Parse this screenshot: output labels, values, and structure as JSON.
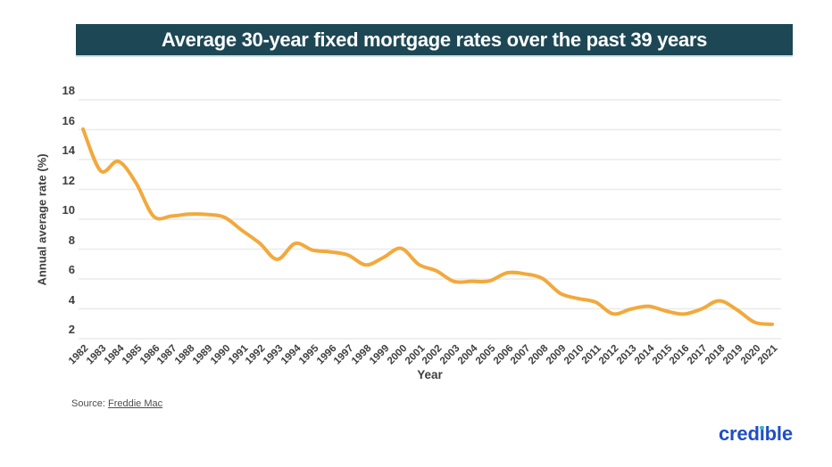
{
  "header": {
    "title": "Average 30-year fixed mortgage rates over the past 39 years",
    "background": "#1d4754"
  },
  "chart_data": {
    "type": "line",
    "title": "Average 30-year fixed mortgage rates over the past 39 years",
    "xlabel": "Year",
    "ylabel": "Annual average rate (%)",
    "x": [
      1982,
      1983,
      1984,
      1985,
      1986,
      1987,
      1988,
      1989,
      1990,
      1991,
      1992,
      1993,
      1994,
      1995,
      1996,
      1997,
      1998,
      1999,
      2000,
      2001,
      2002,
      2003,
      2004,
      2005,
      2006,
      2007,
      2008,
      2009,
      2010,
      2011,
      2012,
      2013,
      2014,
      2015,
      2016,
      2017,
      2018,
      2019,
      2020,
      2021
    ],
    "series": [
      {
        "name": "Annual average 30-year fixed mortgage rate (%)",
        "values": [
          16.04,
          13.24,
          13.88,
          12.43,
          10.19,
          10.21,
          10.34,
          10.32,
          10.13,
          9.25,
          8.39,
          7.31,
          8.38,
          7.93,
          7.81,
          7.6,
          6.94,
          7.44,
          8.05,
          6.97,
          6.54,
          5.83,
          5.84,
          5.87,
          6.41,
          6.34,
          6.03,
          5.04,
          4.69,
          4.45,
          3.66,
          3.98,
          4.17,
          3.85,
          3.65,
          3.99,
          4.54,
          3.94,
          3.1,
          2.96
        ]
      }
    ],
    "ylim": [
      2,
      18
    ],
    "y_ticks": [
      18,
      16,
      14,
      12,
      10,
      8,
      6,
      4,
      2
    ],
    "grid": "horizontal",
    "legend": "none",
    "smooth": true,
    "line_color": "#f2a93c",
    "grid_color": "#eaeaea"
  },
  "footer": {
    "source_prefix": "Source:",
    "source_link_label": "Freddie Mac",
    "brand": "credible",
    "brand_color": "#1f4ec4",
    "brand_dot_color": "#3cb4c7"
  }
}
